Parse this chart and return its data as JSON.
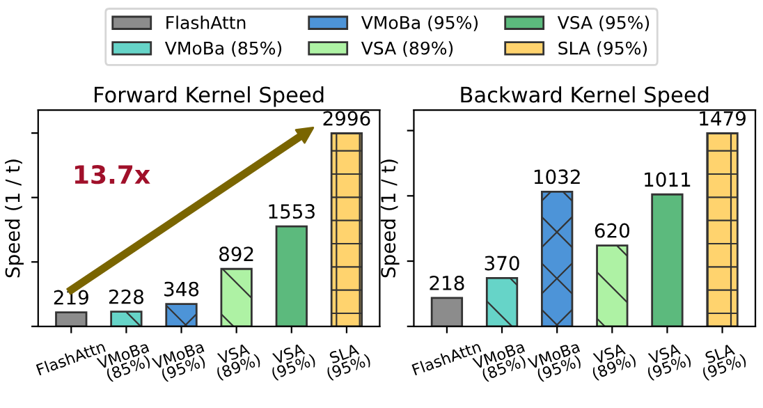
{
  "chart_data": [
    {
      "type": "bar",
      "title": "Forward Kernel Speed",
      "ylabel": "Speed (1 / t)",
      "tick_labels": "x",
      "legend": "top",
      "data_labels": true,
      "categories": [
        "FlashAttn",
        "VMoBa\n(85%)",
        "VMoBa\n(95%)",
        "VSA\n(89%)",
        "VSA\n(95%)",
        "SLA\n(95%)"
      ],
      "annotations": [
        "13.7x"
      ],
      "series": [
        {
          "name": "FlashAttn",
          "color": "#8c8c8c",
          "values": [
            219,
            null,
            null,
            null,
            null,
            null
          ]
        },
        {
          "name": "VMoBa (85%)",
          "color": "#66d4c8",
          "values": [
            null,
            228,
            null,
            null,
            null,
            null
          ]
        },
        {
          "name": "VMoBa (95%)",
          "color": "#4d94d8",
          "values": [
            null,
            null,
            348,
            null,
            null,
            null
          ]
        },
        {
          "name": "VSA (89%)",
          "color": "#aef2a4",
          "values": [
            null,
            null,
            null,
            892,
            null,
            null
          ]
        },
        {
          "name": "VSA (95%)",
          "color": "#5cba7d",
          "values": [
            null,
            null,
            null,
            null,
            1553,
            null
          ]
        },
        {
          "name": "SLA (95%)",
          "color": "#ffd36e",
          "values": [
            null,
            null,
            null,
            null,
            null,
            2996
          ]
        }
      ]
    },
    {
      "type": "bar",
      "title": "Backward Kernel Speed",
      "ylabel": "Speed (1 / t)",
      "tick_labels": "x",
      "data_labels": true,
      "categories": [
        "FlashAttn",
        "VMoBa\n(85%)",
        "VMoBa\n(95%)",
        "VSA\n(89%)",
        "VSA\n(95%)",
        "SLA\n(95%)"
      ],
      "series": [
        {
          "color": "#8c8c8c",
          "values": [
            218,
            null,
            null,
            null,
            null,
            null
          ]
        },
        {
          "color": "#66d4c8",
          "values": [
            null,
            370,
            null,
            null,
            null,
            null
          ]
        },
        {
          "color": "#4d94d8",
          "values": [
            null,
            null,
            1032,
            null,
            null,
            null
          ]
        },
        {
          "color": "#aef2a4",
          "values": [
            null,
            null,
            null,
            620,
            null,
            null
          ]
        },
        {
          "color": "#5cba7d",
          "values": [
            null,
            null,
            null,
            null,
            1011,
            null
          ]
        },
        {
          "color": "#ffd36e",
          "values": [
            null,
            null,
            null,
            null,
            null,
            1479
          ]
        }
      ]
    }
  ]
}
